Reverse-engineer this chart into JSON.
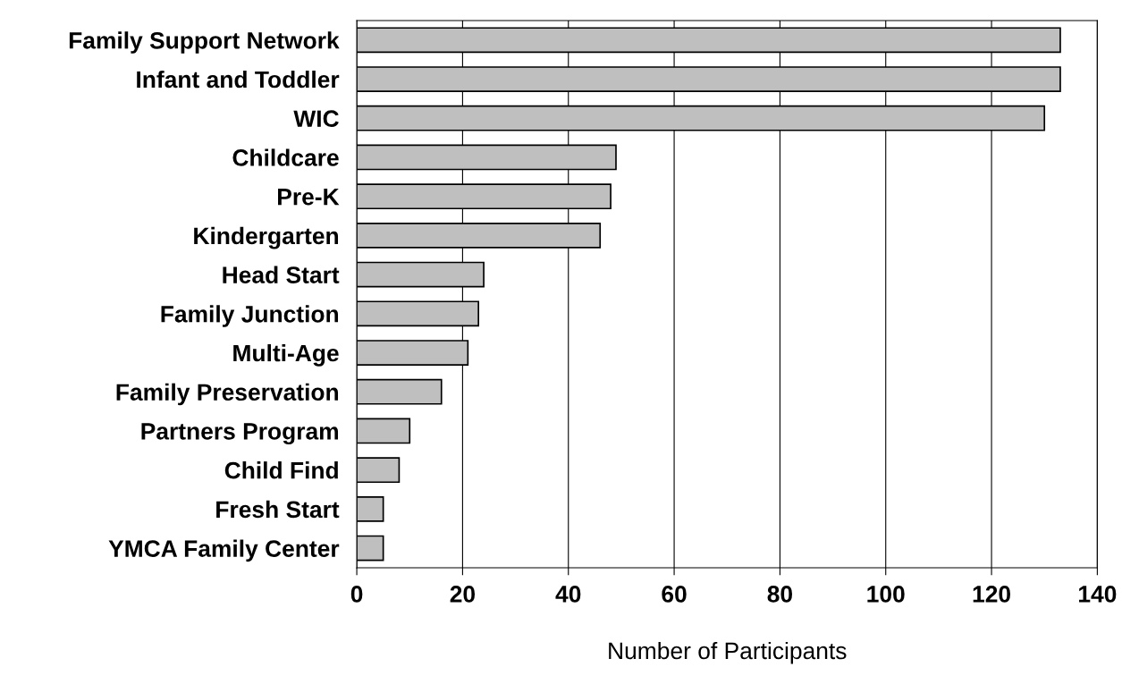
{
  "chart_data": {
    "type": "bar",
    "orientation": "horizontal",
    "xlabel": "Number of Participants",
    "categories": [
      "Family Support Network",
      "Infant and Toddler",
      "WIC",
      "Childcare",
      "Pre-K",
      "Kindergarten",
      "Head Start",
      "Family Junction",
      "Multi-Age",
      "Family Preservation",
      "Partners Program",
      "Child Find",
      "Fresh Start",
      "YMCA Family Center"
    ],
    "values": [
      133,
      133,
      130,
      49,
      48,
      46,
      24,
      23,
      21,
      16,
      10,
      8,
      5,
      5
    ],
    "color": "#bfbfbf",
    "xlim": [
      0,
      140
    ],
    "xticks": [
      0,
      20,
      40,
      60,
      80,
      100,
      120,
      140
    ],
    "grid": "x",
    "legend": false
  }
}
